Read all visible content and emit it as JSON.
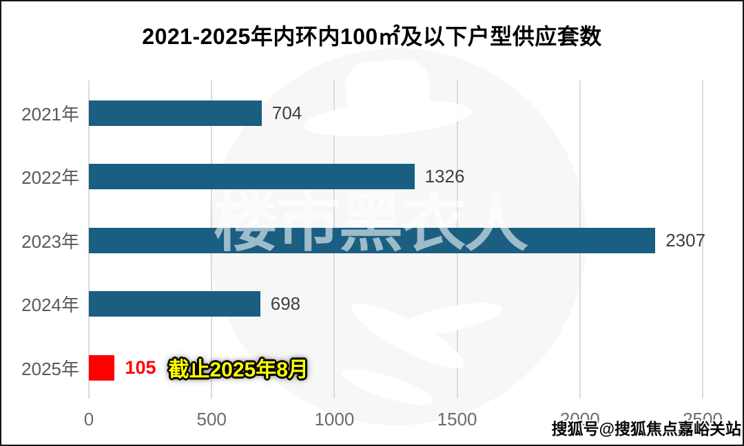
{
  "title": "2021-2025年内环内100㎡及以下户型供应套数",
  "chart_data": {
    "type": "bar",
    "orientation": "horizontal",
    "title": "2021-2025年内环内100㎡及以下户型供应套数",
    "categories": [
      "2021年",
      "2022年",
      "2023年",
      "2024年",
      "2025年"
    ],
    "values": [
      704,
      1326,
      2307,
      698,
      105
    ],
    "bar_colors": [
      "#1A5E81",
      "#1A5E81",
      "#1A5E81",
      "#1A5E81",
      "#FF0000"
    ],
    "value_label_colors": [
      "#3F3F3F",
      "#3F3F3F",
      "#3F3F3F",
      "#3F3F3F",
      "#FF0000"
    ],
    "xlim": [
      0,
      2500
    ],
    "x_ticks": [
      "0",
      "500",
      "1000",
      "1500",
      "2000",
      "2500"
    ],
    "grid": true,
    "legend": "none",
    "annotation": {
      "text": "截止2025年8月",
      "attached_to_category": "2025年",
      "text_color": "#FFFF00",
      "outline_color": "#000000"
    }
  },
  "colors": {
    "bar_teal": "#1A5E81",
    "bar_red": "#FF0000",
    "gridline": "#DBDBDB",
    "title_text": "#000000"
  },
  "watermarks": {
    "center_text": "楼市黑衣人",
    "sohu": "搜狐号@搜狐焦点嘉峪关站"
  }
}
